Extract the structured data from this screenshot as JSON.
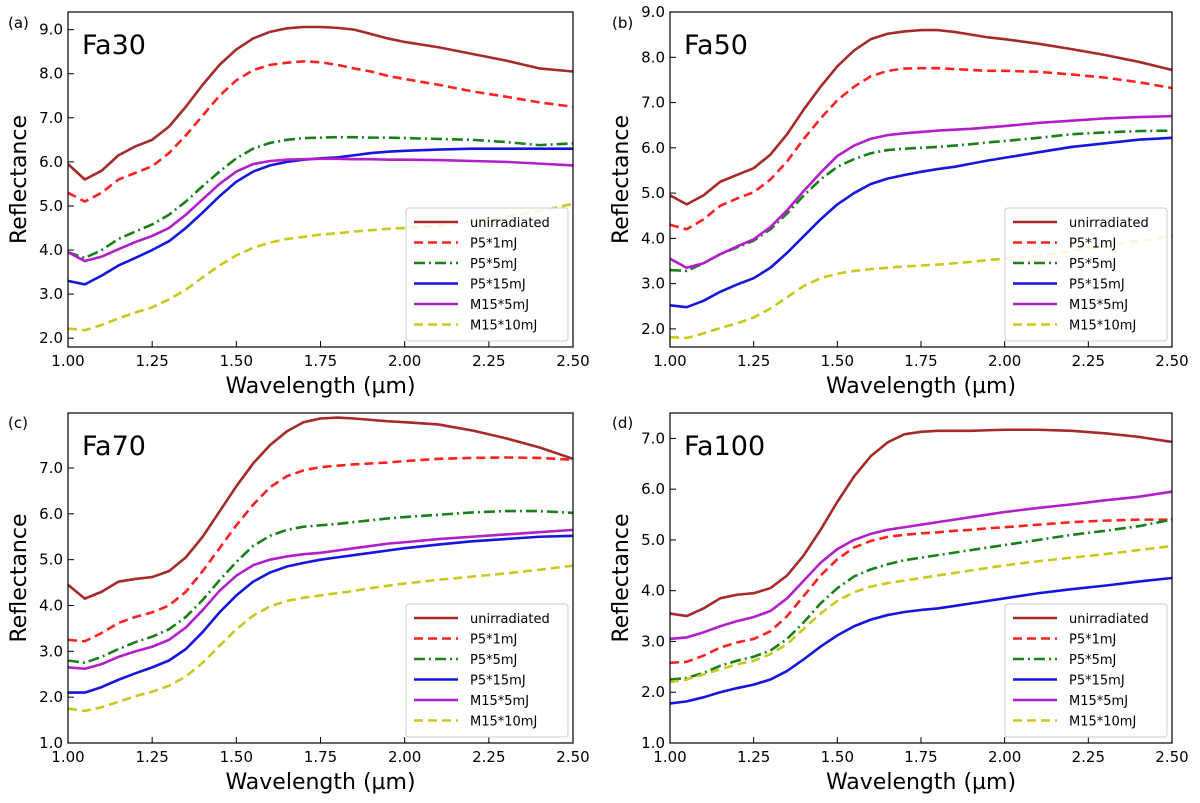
{
  "figure": {
    "series_styles": [
      {
        "name": "unirradiated",
        "color": "#a52a2a",
        "dash": "solid"
      },
      {
        "name": "P5*1mJ",
        "color": "#ff2020",
        "dash": "dashed"
      },
      {
        "name": "P5*5mJ",
        "color": "#1a7f1a",
        "dash": "dashdot"
      },
      {
        "name": "P5*15mJ",
        "color": "#1515e0",
        "dash": "solid"
      },
      {
        "name": "M15*5mJ",
        "color": "#b21ec9",
        "dash": "solid"
      },
      {
        "name": "M15*10mJ",
        "color": "#c8c81e",
        "dash": "dashed"
      }
    ]
  },
  "chart_data": [
    {
      "type": "line",
      "panel_label": "(a)",
      "title": "Fa30",
      "xlabel": "Wavelength (µm)",
      "ylabel": "Reflectance",
      "xlim": [
        1.0,
        2.5
      ],
      "ylim": [
        1.8,
        9.4
      ],
      "xticks": [
        "1.00",
        "1.25",
        "1.50",
        "1.75",
        "2.00",
        "2.25",
        "2.50"
      ],
      "yticks": [
        "2.0",
        "3.0",
        "4.0",
        "5.0",
        "6.0",
        "7.0",
        "8.0",
        "9.0"
      ],
      "legend": "lower-right",
      "x": [
        1.0,
        1.05,
        1.1,
        1.15,
        1.2,
        1.25,
        1.3,
        1.35,
        1.4,
        1.45,
        1.5,
        1.55,
        1.6,
        1.65,
        1.7,
        1.75,
        1.8,
        1.85,
        1.9,
        1.95,
        2.0,
        2.1,
        2.2,
        2.3,
        2.4,
        2.5
      ],
      "series": [
        {
          "name": "unirradiated",
          "values": [
            5.95,
            5.6,
            5.8,
            6.15,
            6.35,
            6.5,
            6.8,
            7.25,
            7.75,
            8.2,
            8.55,
            8.8,
            8.95,
            9.03,
            9.06,
            9.06,
            9.04,
            9.0,
            8.9,
            8.8,
            8.72,
            8.6,
            8.45,
            8.3,
            8.12,
            8.05
          ]
        },
        {
          "name": "P5*1mJ",
          "values": [
            5.3,
            5.1,
            5.3,
            5.6,
            5.75,
            5.9,
            6.2,
            6.6,
            7.05,
            7.5,
            7.85,
            8.08,
            8.2,
            8.25,
            8.28,
            8.26,
            8.2,
            8.12,
            8.05,
            7.95,
            7.88,
            7.75,
            7.6,
            7.48,
            7.35,
            7.25
          ]
        },
        {
          "name": "P5*5mJ",
          "values": [
            3.95,
            3.82,
            4.0,
            4.25,
            4.42,
            4.58,
            4.8,
            5.1,
            5.45,
            5.78,
            6.08,
            6.3,
            6.43,
            6.5,
            6.54,
            6.55,
            6.56,
            6.56,
            6.55,
            6.55,
            6.54,
            6.52,
            6.5,
            6.45,
            6.38,
            6.42
          ]
        },
        {
          "name": "P5*15mJ",
          "values": [
            3.3,
            3.22,
            3.42,
            3.65,
            3.82,
            4.0,
            4.2,
            4.5,
            4.85,
            5.22,
            5.55,
            5.78,
            5.92,
            6.0,
            6.05,
            6.08,
            6.1,
            6.15,
            6.2,
            6.23,
            6.25,
            6.28,
            6.3,
            6.3,
            6.3,
            6.3
          ]
        },
        {
          "name": "M15*5mJ",
          "values": [
            3.95,
            3.75,
            3.85,
            4.02,
            4.18,
            4.32,
            4.5,
            4.8,
            5.15,
            5.5,
            5.78,
            5.95,
            6.02,
            6.05,
            6.06,
            6.07,
            6.07,
            6.06,
            6.06,
            6.05,
            6.05,
            6.04,
            6.02,
            6.0,
            5.96,
            5.92
          ]
        },
        {
          "name": "M15*10mJ",
          "values": [
            2.22,
            2.18,
            2.3,
            2.45,
            2.58,
            2.7,
            2.88,
            3.1,
            3.38,
            3.65,
            3.88,
            4.05,
            4.17,
            4.25,
            4.3,
            4.35,
            4.38,
            4.42,
            4.45,
            4.48,
            4.5,
            4.55,
            4.65,
            4.75,
            4.88,
            5.05
          ]
        }
      ]
    },
    {
      "type": "line",
      "panel_label": "(b)",
      "title": "Fa50",
      "xlabel": "Wavelength (µm)",
      "ylabel": "Reflectance",
      "xlim": [
        1.0,
        2.5
      ],
      "ylim": [
        1.6,
        9.0
      ],
      "xticks": [
        "1.00",
        "1.25",
        "1.50",
        "1.75",
        "2.00",
        "2.25",
        "2.50"
      ],
      "yticks": [
        "2.0",
        "3.0",
        "4.0",
        "5.0",
        "6.0",
        "7.0",
        "8.0",
        "9.0"
      ],
      "legend": "lower-right",
      "x": [
        1.0,
        1.05,
        1.1,
        1.15,
        1.2,
        1.25,
        1.3,
        1.35,
        1.4,
        1.45,
        1.5,
        1.55,
        1.6,
        1.65,
        1.7,
        1.75,
        1.8,
        1.85,
        1.9,
        1.95,
        2.0,
        2.1,
        2.2,
        2.3,
        2.4,
        2.5
      ],
      "series": [
        {
          "name": "unirradiated",
          "values": [
            4.95,
            4.75,
            4.95,
            5.25,
            5.4,
            5.55,
            5.85,
            6.3,
            6.85,
            7.35,
            7.8,
            8.15,
            8.4,
            8.52,
            8.57,
            8.6,
            8.6,
            8.56,
            8.5,
            8.44,
            8.4,
            8.3,
            8.18,
            8.05,
            7.9,
            7.72
          ]
        },
        {
          "name": "P5*1mJ",
          "values": [
            4.3,
            4.2,
            4.42,
            4.72,
            4.88,
            5.02,
            5.3,
            5.7,
            6.2,
            6.65,
            7.05,
            7.35,
            7.58,
            7.7,
            7.75,
            7.76,
            7.76,
            7.74,
            7.72,
            7.7,
            7.7,
            7.68,
            7.62,
            7.55,
            7.45,
            7.32
          ]
        },
        {
          "name": "P5*5mJ",
          "values": [
            3.3,
            3.28,
            3.45,
            3.65,
            3.8,
            3.95,
            4.2,
            4.55,
            4.95,
            5.3,
            5.58,
            5.75,
            5.88,
            5.95,
            5.98,
            6.0,
            6.02,
            6.05,
            6.08,
            6.12,
            6.15,
            6.22,
            6.3,
            6.34,
            6.37,
            6.38
          ]
        },
        {
          "name": "P5*15mJ",
          "values": [
            2.52,
            2.48,
            2.62,
            2.82,
            2.98,
            3.12,
            3.35,
            3.68,
            4.05,
            4.42,
            4.75,
            5.0,
            5.2,
            5.32,
            5.4,
            5.47,
            5.53,
            5.58,
            5.65,
            5.72,
            5.78,
            5.9,
            6.02,
            6.1,
            6.18,
            6.22
          ]
        },
        {
          "name": "M15*5mJ",
          "values": [
            3.55,
            3.35,
            3.45,
            3.65,
            3.82,
            3.98,
            4.25,
            4.62,
            5.05,
            5.45,
            5.82,
            6.05,
            6.2,
            6.28,
            6.32,
            6.35,
            6.38,
            6.4,
            6.42,
            6.45,
            6.48,
            6.55,
            6.6,
            6.65,
            6.68,
            6.7
          ]
        },
        {
          "name": "M15*10mJ",
          "values": [
            1.82,
            1.8,
            1.9,
            2.02,
            2.12,
            2.25,
            2.45,
            2.7,
            2.95,
            3.12,
            3.22,
            3.28,
            3.32,
            3.35,
            3.38,
            3.4,
            3.42,
            3.45,
            3.48,
            3.52,
            3.55,
            3.62,
            3.72,
            3.82,
            3.95,
            4.05
          ]
        }
      ]
    },
    {
      "type": "line",
      "panel_label": "(c)",
      "title": "Fa70",
      "xlabel": "Wavelength (µm)",
      "ylabel": "Reflectance",
      "xlim": [
        1.0,
        2.5
      ],
      "ylim": [
        1.0,
        8.2
      ],
      "xticks": [
        "1.00",
        "1.25",
        "1.50",
        "1.75",
        "2.00",
        "2.25",
        "2.50"
      ],
      "yticks": [
        "1.0",
        "2.0",
        "3.0",
        "4.0",
        "5.0",
        "6.0",
        "7.0"
      ],
      "legend": "lower-right",
      "x": [
        1.0,
        1.05,
        1.1,
        1.15,
        1.2,
        1.25,
        1.3,
        1.35,
        1.4,
        1.45,
        1.5,
        1.55,
        1.6,
        1.65,
        1.7,
        1.75,
        1.8,
        1.85,
        1.9,
        1.95,
        2.0,
        2.1,
        2.2,
        2.3,
        2.4,
        2.5
      ],
      "series": [
        {
          "name": "unirradiated",
          "values": [
            4.45,
            4.15,
            4.3,
            4.52,
            4.58,
            4.62,
            4.75,
            5.05,
            5.5,
            6.05,
            6.6,
            7.1,
            7.5,
            7.8,
            8.0,
            8.08,
            8.1,
            8.08,
            8.05,
            8.02,
            8.0,
            7.95,
            7.82,
            7.65,
            7.45,
            7.2
          ]
        },
        {
          "name": "P5*1mJ",
          "values": [
            3.25,
            3.22,
            3.4,
            3.62,
            3.75,
            3.85,
            4.0,
            4.3,
            4.75,
            5.25,
            5.75,
            6.2,
            6.58,
            6.82,
            6.95,
            7.02,
            7.05,
            7.08,
            7.1,
            7.12,
            7.15,
            7.2,
            7.22,
            7.23,
            7.22,
            7.18
          ]
        },
        {
          "name": "P5*5mJ",
          "values": [
            2.8,
            2.75,
            2.88,
            3.05,
            3.2,
            3.32,
            3.48,
            3.75,
            4.12,
            4.55,
            4.95,
            5.3,
            5.52,
            5.65,
            5.72,
            5.75,
            5.78,
            5.82,
            5.86,
            5.9,
            5.93,
            5.98,
            6.03,
            6.06,
            6.06,
            6.02
          ]
        },
        {
          "name": "P5*15mJ",
          "values": [
            2.1,
            2.1,
            2.22,
            2.38,
            2.52,
            2.65,
            2.8,
            3.05,
            3.42,
            3.85,
            4.22,
            4.52,
            4.72,
            4.85,
            4.93,
            5.0,
            5.05,
            5.1,
            5.15,
            5.2,
            5.25,
            5.33,
            5.4,
            5.45,
            5.5,
            5.52
          ]
        },
        {
          "name": "M15*5mJ",
          "values": [
            2.65,
            2.62,
            2.72,
            2.88,
            3.0,
            3.1,
            3.25,
            3.52,
            3.9,
            4.32,
            4.65,
            4.88,
            5.0,
            5.07,
            5.12,
            5.15,
            5.2,
            5.25,
            5.3,
            5.35,
            5.38,
            5.45,
            5.5,
            5.55,
            5.6,
            5.65
          ]
        },
        {
          "name": "M15*10mJ",
          "values": [
            1.75,
            1.7,
            1.78,
            1.9,
            2.02,
            2.12,
            2.25,
            2.45,
            2.75,
            3.12,
            3.48,
            3.78,
            3.98,
            4.1,
            4.17,
            4.22,
            4.27,
            4.32,
            4.38,
            4.43,
            4.48,
            4.56,
            4.63,
            4.7,
            4.78,
            4.87
          ]
        }
      ]
    },
    {
      "type": "line",
      "panel_label": "(d)",
      "title": "Fa100",
      "xlabel": "Wavelength (µm)",
      "ylabel": "Reflectance",
      "xlim": [
        1.0,
        2.5
      ],
      "ylim": [
        1.0,
        7.5
      ],
      "xticks": [
        "1.00",
        "1.25",
        "1.50",
        "1.75",
        "2.00",
        "2.25",
        "2.50"
      ],
      "yticks": [
        "1.0",
        "2.0",
        "3.0",
        "4.0",
        "5.0",
        "6.0",
        "7.0"
      ],
      "legend": "lower-right",
      "x": [
        1.0,
        1.05,
        1.1,
        1.15,
        1.2,
        1.25,
        1.3,
        1.35,
        1.4,
        1.45,
        1.5,
        1.55,
        1.6,
        1.65,
        1.7,
        1.75,
        1.8,
        1.85,
        1.9,
        1.95,
        2.0,
        2.1,
        2.2,
        2.3,
        2.4,
        2.5
      ],
      "series": [
        {
          "name": "unirradiated",
          "values": [
            3.55,
            3.5,
            3.65,
            3.85,
            3.92,
            3.95,
            4.05,
            4.3,
            4.7,
            5.2,
            5.75,
            6.25,
            6.65,
            6.92,
            7.08,
            7.13,
            7.15,
            7.15,
            7.15,
            7.16,
            7.17,
            7.17,
            7.15,
            7.1,
            7.03,
            6.93
          ]
        },
        {
          "name": "P5*1mJ",
          "values": [
            2.58,
            2.6,
            2.72,
            2.88,
            2.98,
            3.05,
            3.2,
            3.5,
            3.9,
            4.3,
            4.62,
            4.85,
            4.98,
            5.06,
            5.1,
            5.13,
            5.15,
            5.18,
            5.2,
            5.23,
            5.25,
            5.3,
            5.35,
            5.38,
            5.4,
            5.4
          ]
        },
        {
          "name": "P5*5mJ",
          "values": [
            2.25,
            2.28,
            2.38,
            2.52,
            2.62,
            2.7,
            2.82,
            3.05,
            3.38,
            3.75,
            4.05,
            4.28,
            4.42,
            4.52,
            4.6,
            4.65,
            4.7,
            4.75,
            4.8,
            4.85,
            4.9,
            5.0,
            5.1,
            5.18,
            5.27,
            5.4
          ]
        },
        {
          "name": "P5*15mJ",
          "values": [
            1.78,
            1.82,
            1.9,
            2.0,
            2.08,
            2.15,
            2.25,
            2.42,
            2.65,
            2.9,
            3.12,
            3.3,
            3.43,
            3.52,
            3.58,
            3.62,
            3.65,
            3.7,
            3.75,
            3.8,
            3.85,
            3.95,
            4.03,
            4.1,
            4.18,
            4.25
          ]
        },
        {
          "name": "M15*5mJ",
          "values": [
            3.05,
            3.08,
            3.18,
            3.3,
            3.4,
            3.48,
            3.6,
            3.85,
            4.2,
            4.55,
            4.82,
            5.0,
            5.12,
            5.2,
            5.25,
            5.3,
            5.35,
            5.4,
            5.45,
            5.5,
            5.55,
            5.63,
            5.7,
            5.78,
            5.85,
            5.95
          ]
        },
        {
          "name": "M15*10mJ",
          "values": [
            2.2,
            2.25,
            2.35,
            2.45,
            2.55,
            2.62,
            2.75,
            2.95,
            3.25,
            3.55,
            3.8,
            3.97,
            4.08,
            4.15,
            4.2,
            4.25,
            4.3,
            4.35,
            4.4,
            4.45,
            4.5,
            4.58,
            4.65,
            4.72,
            4.8,
            4.88
          ]
        }
      ]
    }
  ]
}
